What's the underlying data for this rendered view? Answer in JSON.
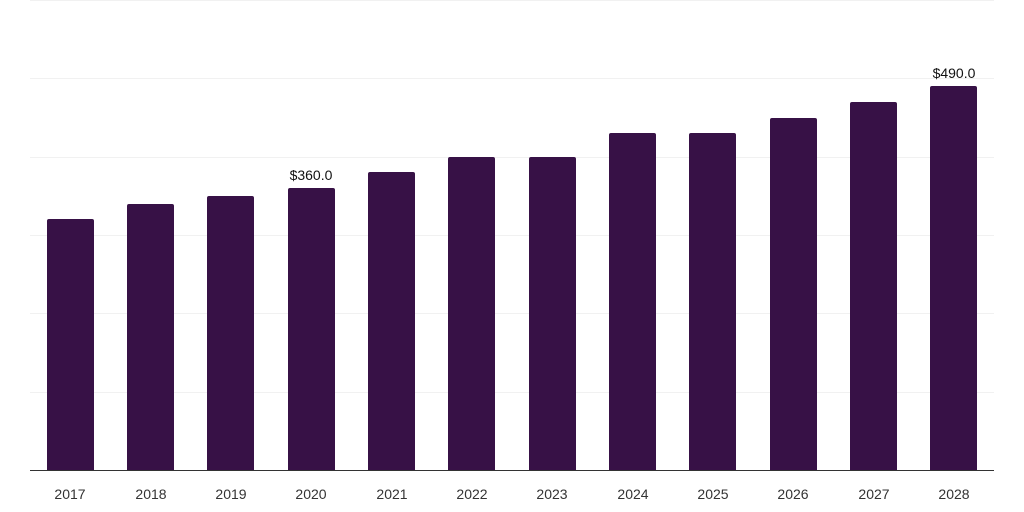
{
  "chart_data": {
    "type": "bar",
    "title": "",
    "xlabel": "",
    "ylabel": "",
    "categories": [
      "2017",
      "2018",
      "2019",
      "2020",
      "2021",
      "2022",
      "2023",
      "2024",
      "2025",
      "2026",
      "2027",
      "2028"
    ],
    "values": [
      320,
      340,
      350,
      360,
      380,
      400,
      400,
      430,
      430,
      450,
      470,
      490
    ],
    "ylim": [
      0,
      600
    ],
    "yticks": [
      0,
      100,
      200,
      300,
      400,
      500,
      600
    ],
    "grid": true,
    "legend": null,
    "bar_color": "#371146",
    "annotations": [
      {
        "category": "2020",
        "label": "$360.0"
      },
      {
        "category": "2028",
        "label": "$490.0"
      }
    ]
  }
}
